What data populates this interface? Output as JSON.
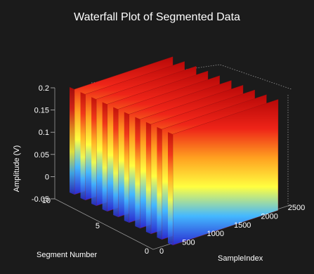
{
  "chart_data": {
    "type": "waterfall-3d",
    "title": "Waterfall Plot of Segmented Data",
    "zlabel": "Amplitude (V)",
    "ylabel": "Segment Number",
    "xlabel": "SampleIndex",
    "z_ticks": [
      "-0.05",
      "0",
      "0.05",
      "0.1",
      "0.15",
      "0.2"
    ],
    "y_ticks": [
      "0",
      "5",
      "10"
    ],
    "x_ticks": [
      "0",
      "500",
      "1000",
      "1500",
      "2000",
      "2500"
    ],
    "zlim": [
      -0.05,
      0.2
    ],
    "ylim": [
      0,
      10
    ],
    "xlim": [
      0,
      2500
    ],
    "segments": [
      1,
      2,
      3,
      4,
      5,
      6,
      7,
      8,
      9,
      10
    ],
    "colormap": [
      "#2a2ad0",
      "#44b8ff",
      "#ffff40",
      "#ffa020",
      "#ee2418",
      "#b80808"
    ],
    "background": "#1b1b1b"
  }
}
